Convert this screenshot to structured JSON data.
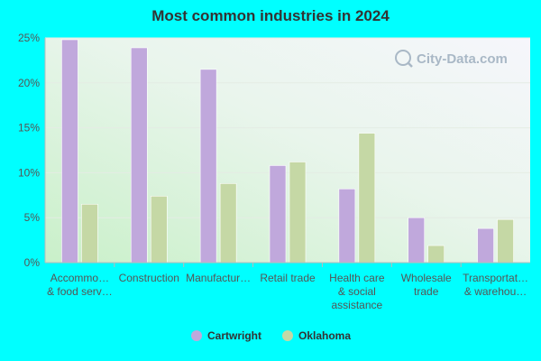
{
  "chart_data": {
    "type": "bar",
    "title": "Most common industries in 2024",
    "xlabel": "",
    "ylabel": "",
    "ylim": [
      0,
      25
    ],
    "yticks": [
      "0%",
      "5%",
      "10%",
      "15%",
      "20%",
      "25%"
    ],
    "grid": true,
    "legend_position": "bottom-center",
    "categories": [
      [
        "Accommo…",
        "& food serv…"
      ],
      [
        "Construction"
      ],
      [
        "Manufactur…"
      ],
      [
        "Retail trade"
      ],
      [
        "Health care",
        "& social",
        "assistance"
      ],
      [
        "Wholesale",
        "trade"
      ],
      [
        "Transportat…",
        "& warehou…"
      ]
    ],
    "series": [
      {
        "name": "Cartwright",
        "color": "#c0a8dc",
        "values": [
          24.8,
          23.9,
          21.5,
          10.8,
          8.2,
          5.0,
          3.8
        ]
      },
      {
        "name": "Oklahoma",
        "color": "#c5d8a5",
        "values": [
          6.5,
          7.4,
          8.8,
          11.2,
          14.4,
          1.9,
          4.8
        ]
      }
    ]
  },
  "watermark": "City-Data.com"
}
